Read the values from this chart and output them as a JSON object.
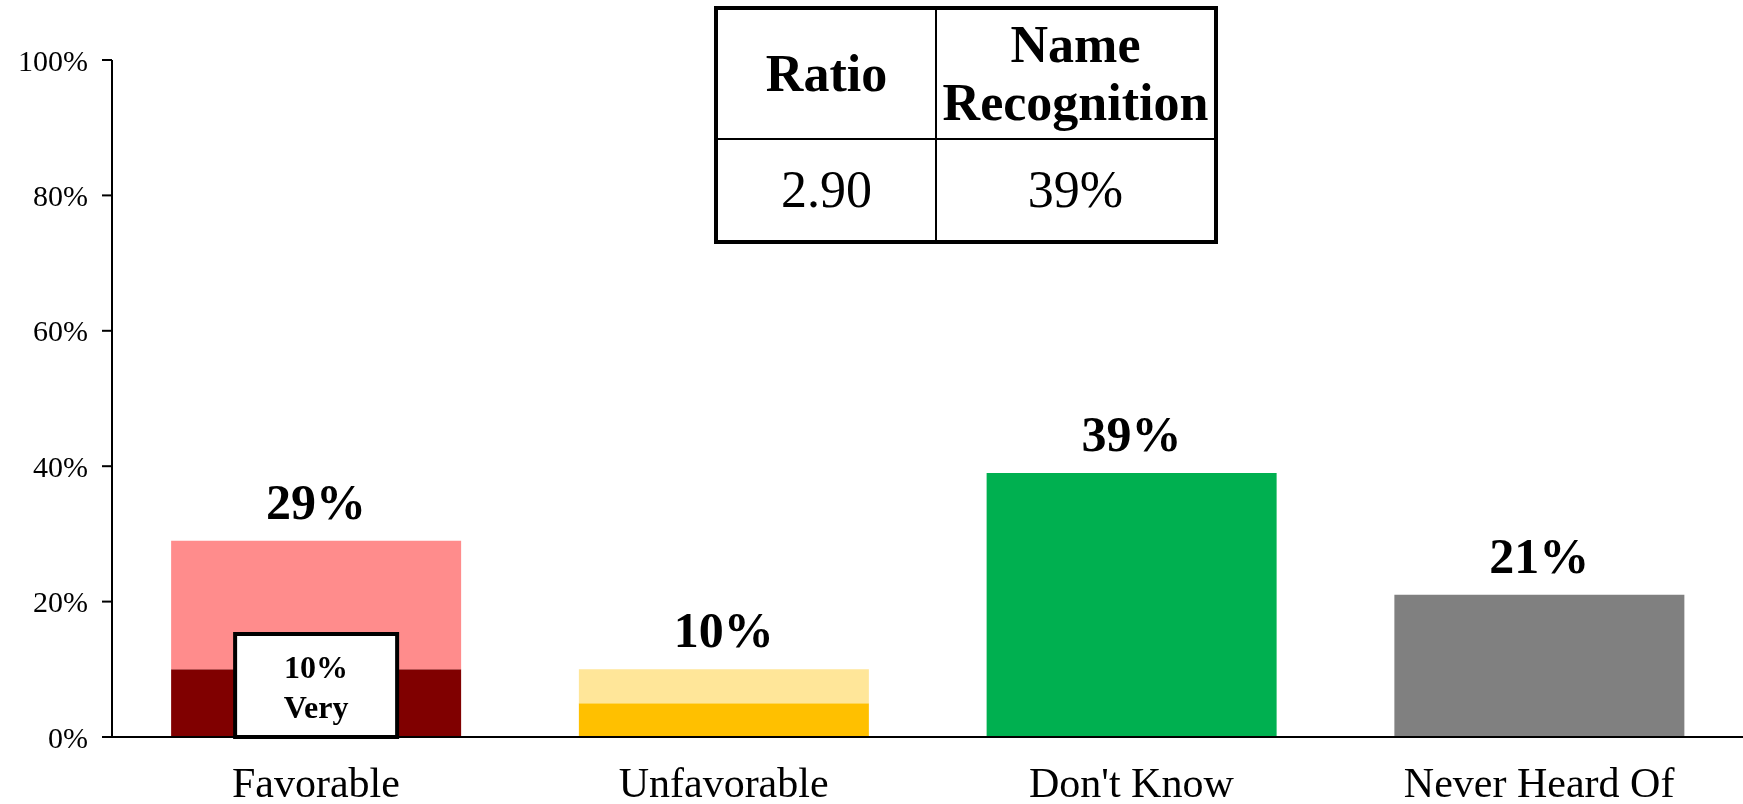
{
  "chart_data": {
    "type": "bar",
    "stacked": true,
    "categories": [
      "Favorable",
      "Unfavorable",
      "Don't Know",
      "Never Heard Of"
    ],
    "series": [
      {
        "values": [
          10,
          5,
          39,
          21
        ],
        "colors": [
          "#800000",
          "#ffc000",
          "#00b050",
          "#808080"
        ],
        "value_labels": [
          "10% Very",
          null,
          null,
          null
        ]
      },
      {
        "values": [
          19,
          5,
          null,
          null
        ],
        "colors": [
          "#ff8c8c",
          "#ffe699",
          null,
          null
        ]
      }
    ],
    "totals": [
      "29%",
      "10%",
      "39%",
      "21%"
    ],
    "ylim": [
      0,
      100
    ],
    "yticks": [
      {
        "value": 0,
        "label": "0%"
      },
      {
        "value": 20,
        "label": "20%"
      },
      {
        "value": 40,
        "label": "40%"
      },
      {
        "value": 60,
        "label": "60%"
      },
      {
        "value": 80,
        "label": "80%"
      },
      {
        "value": 100,
        "label": "100%"
      }
    ],
    "annotations": [
      "Ratio",
      "Name Recognition",
      "2.90",
      "39%"
    ]
  }
}
